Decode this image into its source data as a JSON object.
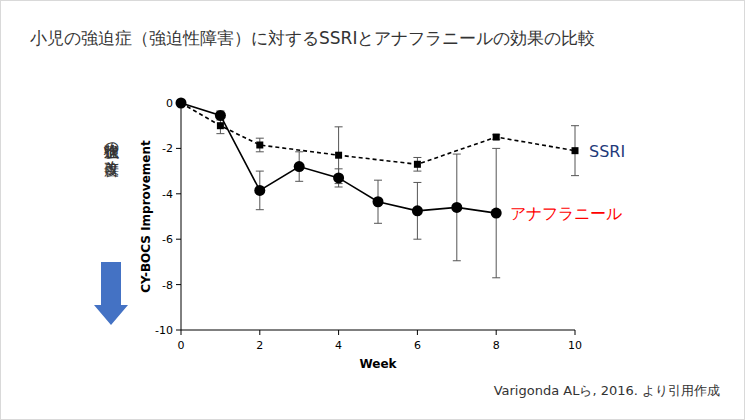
{
  "chart_data": {
    "type": "line",
    "title": "小児の強迫症（強迫性障害）に対するSSRIとアナフラニールの効果の比較",
    "x_label": "Week",
    "y_label": "CY-BOCS Improvement",
    "annotations": [
      "強迫症状の改善度",
      "Varigonda ALら, 2016. より引用作成"
    ],
    "xlim": [
      0,
      10
    ],
    "xticks": [
      0,
      2,
      4,
      6,
      8,
      10
    ],
    "ylim": [
      -10,
      0
    ],
    "yticks": [
      0,
      -2,
      -4,
      -6,
      -8,
      -10
    ],
    "grid": false,
    "series": [
      {
        "name": "SSRI",
        "color": "#000000",
        "line_style": "dashed",
        "marker": "square",
        "x": [
          0,
          1,
          2,
          4,
          6,
          8,
          10
        ],
        "values": [
          0,
          -1.0,
          -1.85,
          -2.3,
          -2.7,
          -1.5,
          -2.1
        ],
        "errors": [
          0,
          0.35,
          0.3,
          1.25,
          0.3,
          0.1,
          1.1
        ]
      },
      {
        "name": "アナフラニール",
        "color": "#000000",
        "line_style": "solid",
        "marker": "circle",
        "x": [
          0,
          1,
          2,
          3,
          4,
          5,
          6,
          7,
          8
        ],
        "values": [
          0,
          -0.55,
          -3.85,
          -2.8,
          -3.3,
          -4.35,
          -4.75,
          -4.6,
          -4.85
        ],
        "errors": [
          0,
          0.2,
          0.85,
          0.65,
          0.4,
          0.95,
          1.25,
          2.35,
          2.85
        ]
      }
    ]
  }
}
